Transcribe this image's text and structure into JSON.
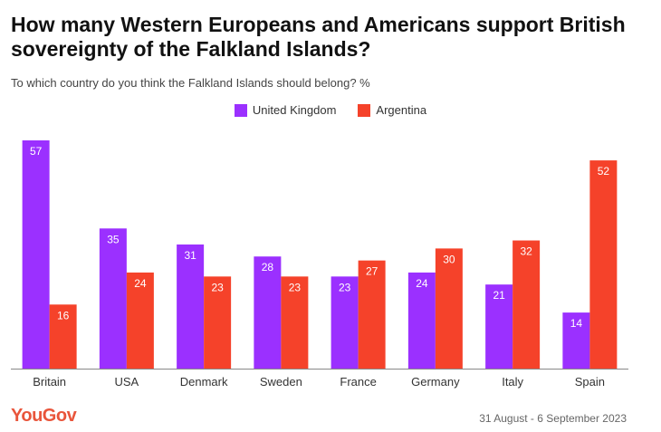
{
  "chart_data": {
    "type": "bar",
    "title": "How many Western Europeans and Americans support British sovereignty of the Falkland Islands?",
    "subtitle": "To which country do you think the Falkland Islands should belong? %",
    "categories": [
      "Britain",
      "USA",
      "Denmark",
      "Sweden",
      "France",
      "Germany",
      "Italy",
      "Spain"
    ],
    "series": [
      {
        "name": "United Kingdom",
        "color": "#9b30ff",
        "values": [
          57,
          35,
          31,
          28,
          23,
          24,
          21,
          14
        ]
      },
      {
        "name": "Argentina",
        "color": "#f5422a",
        "values": [
          16,
          24,
          23,
          23,
          27,
          30,
          32,
          52
        ]
      }
    ],
    "ylim": [
      0,
      57
    ],
    "legend": "top-center",
    "grid": false
  },
  "footer": {
    "brand": "YouGov",
    "date": "31 August - 6 September 2023"
  }
}
